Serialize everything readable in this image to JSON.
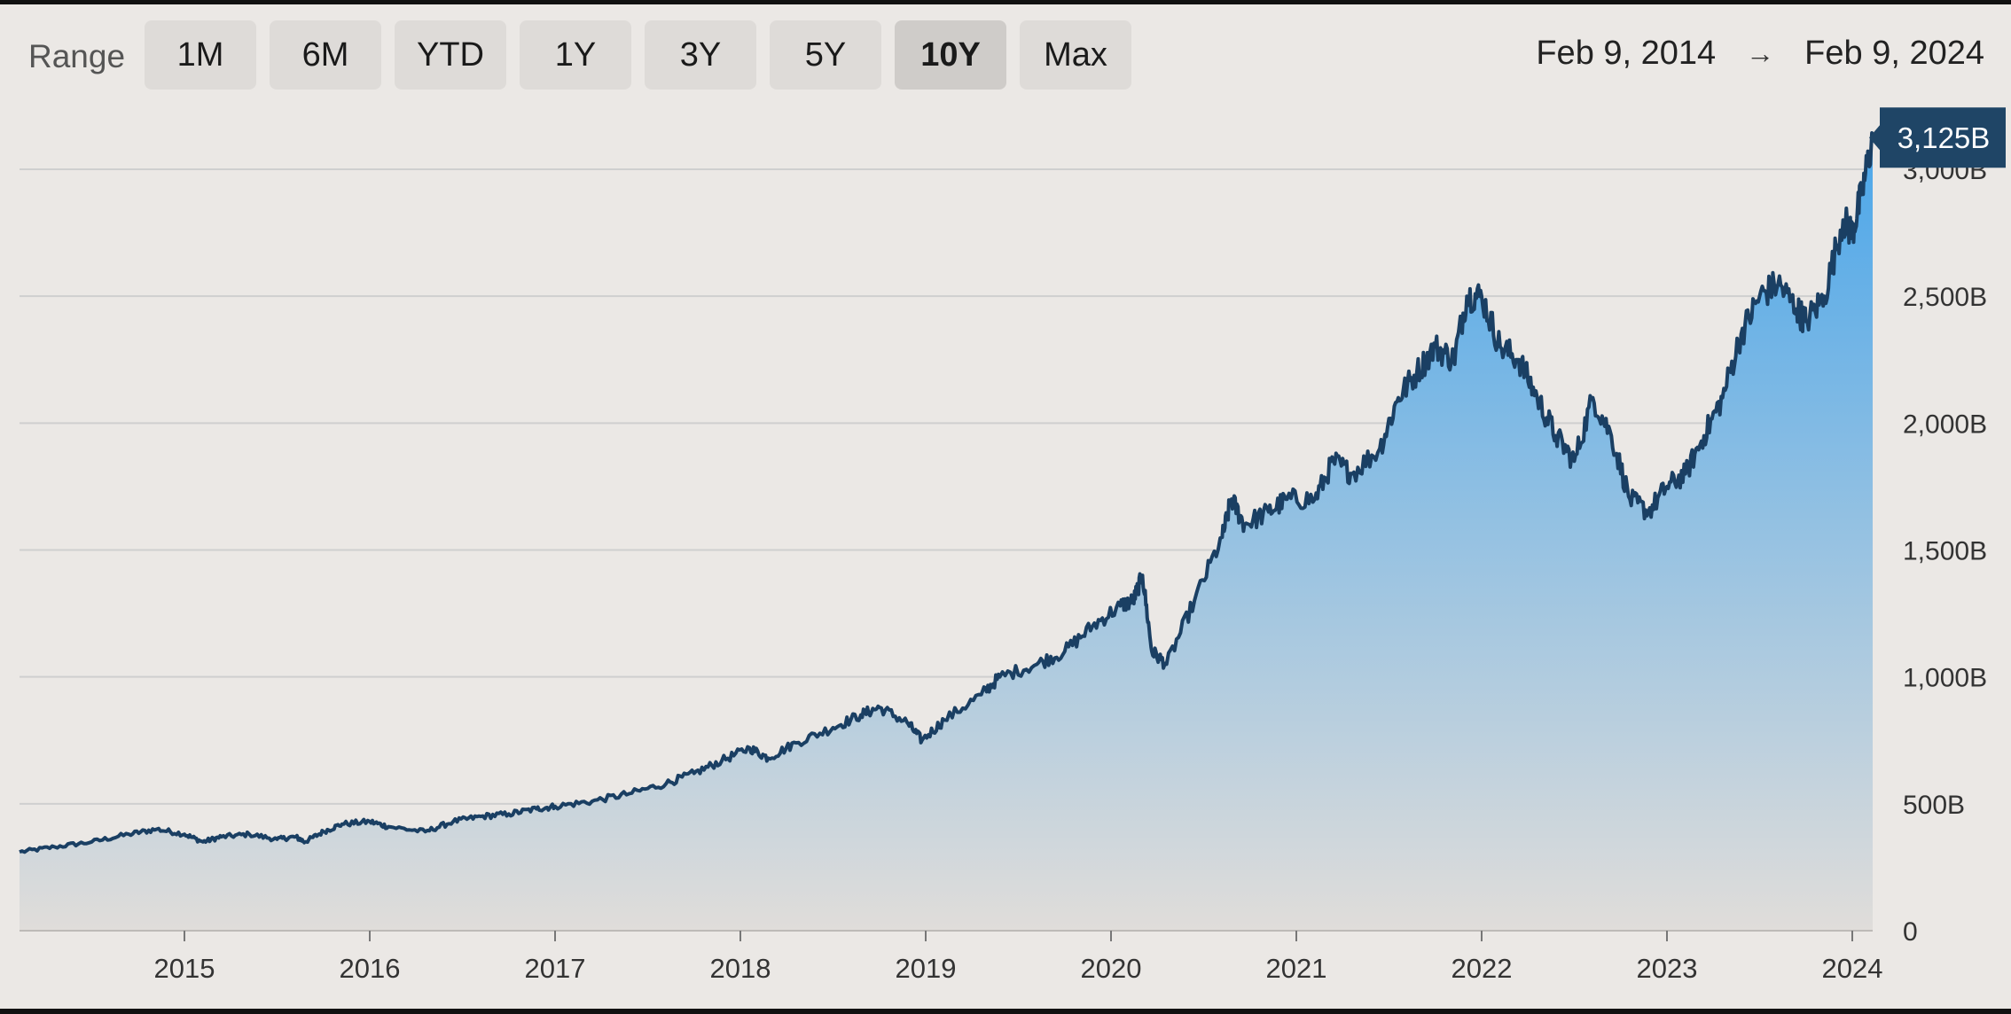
{
  "range": {
    "label": "Range",
    "options": [
      "1M",
      "6M",
      "YTD",
      "1Y",
      "3Y",
      "5Y",
      "10Y",
      "Max"
    ],
    "selected": "10Y"
  },
  "date_range": {
    "start": "Feb 9, 2014",
    "arrow": "→",
    "end": "Feb 9, 2024"
  },
  "colors": {
    "line": "#1a3f63",
    "area_top": "#4aa6ea",
    "area_bottom": "#e0ddda",
    "grid": "#cfcfcf",
    "callout": "#1f4566"
  },
  "chart_data": {
    "type": "area",
    "title": "",
    "xlabel": "",
    "ylabel": "",
    "xlim": [
      2014.11,
      2024.11
    ],
    "ylim": [
      0,
      3250
    ],
    "y_unit": "B",
    "y_ticks": [
      0,
      500,
      1000,
      1500,
      2000,
      2500,
      3000
    ],
    "y_tick_labels": [
      "0",
      "500B",
      "1,000B",
      "1,500B",
      "2,000B",
      "2,500B",
      "3,000B"
    ],
    "x_ticks": [
      2015,
      2016,
      2017,
      2018,
      2019,
      2020,
      2021,
      2022,
      2023,
      2024
    ],
    "x_tick_labels": [
      "2015",
      "2016",
      "2017",
      "2018",
      "2019",
      "2020",
      "2021",
      "2022",
      "2023",
      "2024"
    ],
    "grid": true,
    "last_value_label": "3,125B",
    "series": [
      {
        "x": [
          2014.11,
          2014.3,
          2014.5,
          2014.7,
          2014.85,
          2015.0,
          2015.1,
          2015.2,
          2015.35,
          2015.5,
          2015.6,
          2015.65,
          2015.75,
          2015.85,
          2016.0,
          2016.1,
          2016.3,
          2016.45,
          2016.6,
          2016.75,
          2016.9,
          2017.0,
          2017.2,
          2017.4,
          2017.6,
          2017.75,
          2017.9,
          2018.05,
          2018.15,
          2018.3,
          2018.5,
          2018.65,
          2018.75,
          2018.9,
          2018.98,
          2019.1,
          2019.3,
          2019.4,
          2019.6,
          2019.75,
          2019.9,
          2020.05,
          2020.12,
          2020.17,
          2020.22,
          2020.3,
          2020.45,
          2020.6,
          2020.65,
          2020.72,
          2020.85,
          2020.95,
          2021.1,
          2021.2,
          2021.3,
          2021.45,
          2021.55,
          2021.65,
          2021.75,
          2021.85,
          2021.92,
          2022.0,
          2022.1,
          2022.2,
          2022.3,
          2022.4,
          2022.5,
          2022.6,
          2022.7,
          2022.8,
          2022.9,
          2023.0,
          2023.1,
          2023.2,
          2023.3,
          2023.4,
          2023.5,
          2023.6,
          2023.7,
          2023.75,
          2023.85,
          2023.95,
          2024.0,
          2024.05,
          2024.11
        ],
        "y": [
          310,
          330,
          350,
          380,
          400,
          380,
          350,
          370,
          380,
          360,
          370,
          350,
          390,
          420,
          430,
          410,
          390,
          430,
          450,
          460,
          480,
          490,
          510,
          540,
          580,
          620,
          670,
          720,
          680,
          740,
          800,
          850,
          880,
          820,
          750,
          830,
          930,
          1000,
          1050,
          1100,
          1200,
          1280,
          1300,
          1400,
          1100,
          1050,
          1300,
          1550,
          1700,
          1600,
          1650,
          1700,
          1700,
          1850,
          1800,
          1900,
          2100,
          2200,
          2300,
          2250,
          2500,
          2500,
          2300,
          2250,
          2100,
          1950,
          1850,
          2100,
          1950,
          1700,
          1650,
          1750,
          1800,
          1950,
          2100,
          2350,
          2500,
          2550,
          2450,
          2400,
          2500,
          2800,
          2750,
          2900,
          3125
        ]
      }
    ]
  }
}
